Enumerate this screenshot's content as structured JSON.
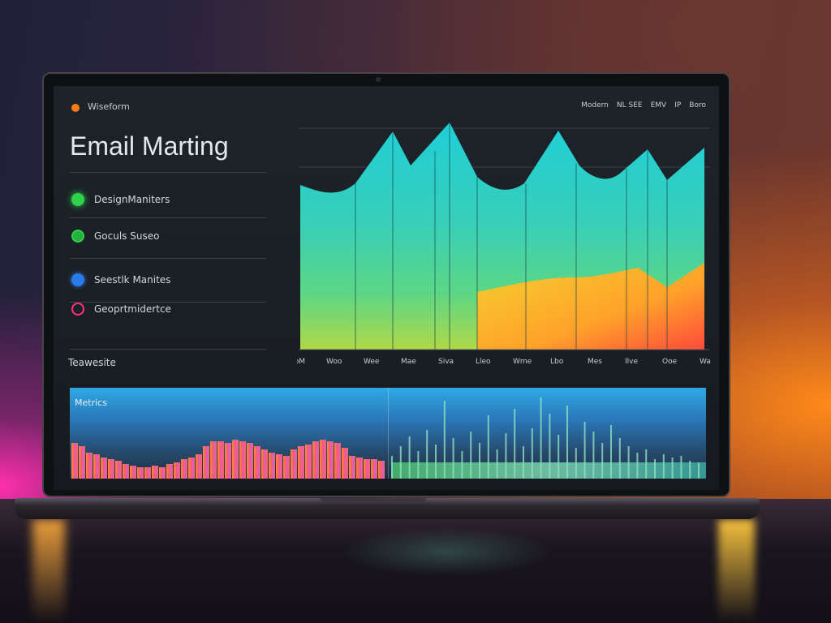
{
  "app": {
    "brand": "Wiseform",
    "title": "Email Marting"
  },
  "header": {
    "nav": [
      "Modern",
      "NL SEE",
      "EMV",
      "IP",
      "Boro"
    ]
  },
  "sidebar": {
    "items": [
      {
        "label": "DesignManiters",
        "icon": "circle-icon",
        "color": "#2fd04a"
      },
      {
        "label": "Goculs Suseo",
        "icon": "circle-icon",
        "color": "#2fd04a"
      },
      {
        "label": "Seestlk Manites",
        "icon": "circle-icon",
        "color": "#2a7bea"
      },
      {
        "label": "Geoprtmidertce",
        "icon": "ring-icon",
        "color": "#ff2f8a"
      }
    ],
    "section_label": "Teawesite"
  },
  "main_chart": {
    "type": "area",
    "tick_labels": [
      "NoM",
      "Woo",
      "Wee",
      "Mae",
      "Siva",
      "Lleo",
      "Wme",
      "Lbo",
      "Mes",
      "Ilve",
      "Ooe",
      "Wae"
    ],
    "colors": {
      "top": "#1fd7e0",
      "mid": "#5fe08a",
      "low": "#f5d030",
      "bottom": "#ff5a2a"
    }
  },
  "bottom_panel": {
    "label": "Metrics",
    "colors": {
      "sky": "#2fa9e6",
      "left_bars": "#ff6a3a",
      "right_bars": "#6ad4a0"
    }
  }
}
